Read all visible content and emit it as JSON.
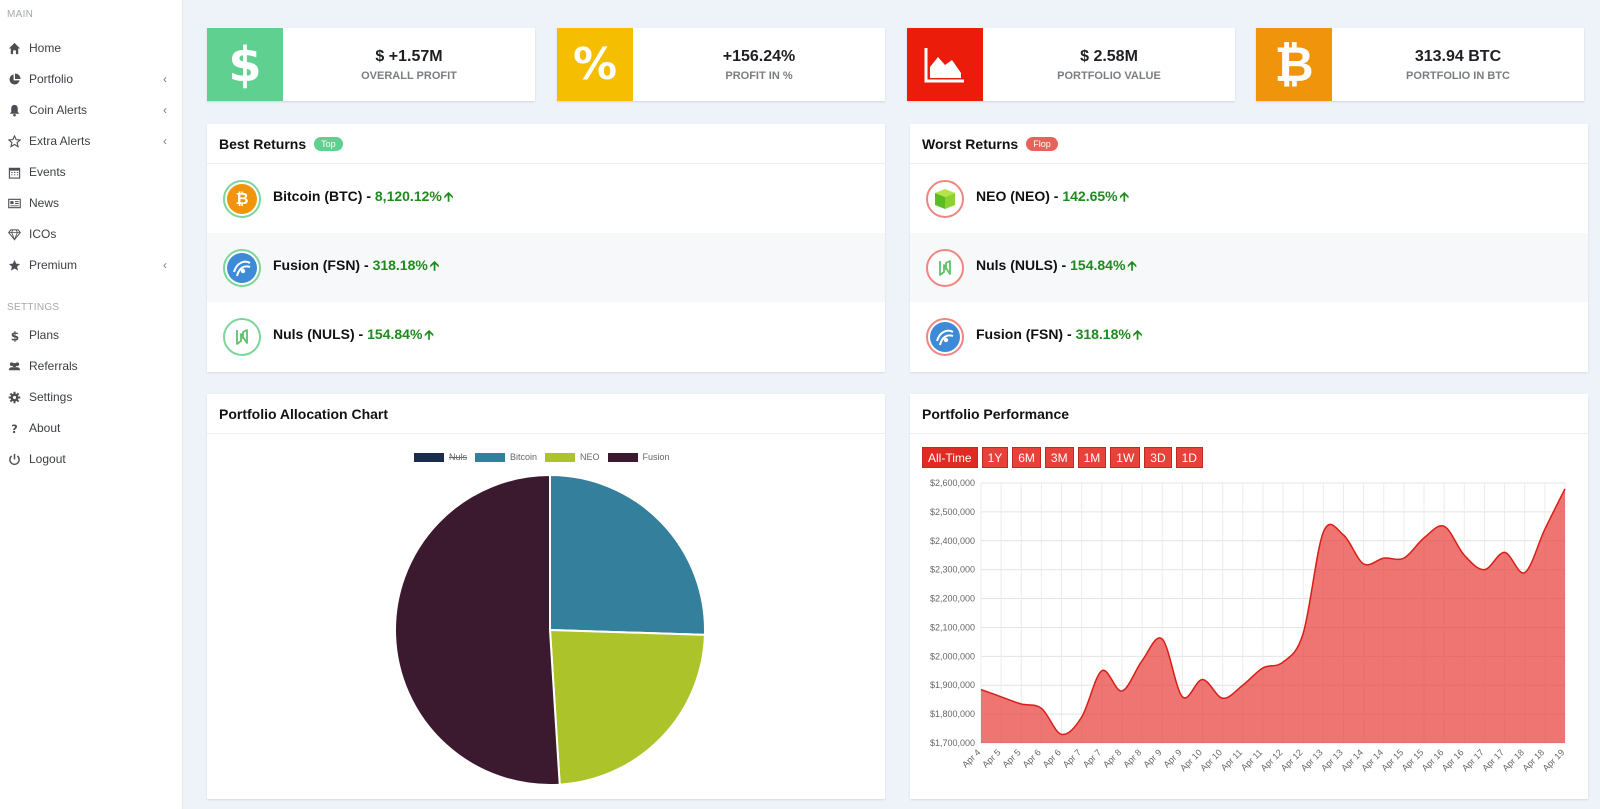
{
  "sidebar": {
    "sections": [
      {
        "title": "MAIN",
        "items": [
          {
            "label": "Home",
            "icon": "home-icon",
            "chevron": false
          },
          {
            "label": "Portfolio",
            "icon": "pie-chart-icon",
            "chevron": true
          },
          {
            "label": "Coin Alerts",
            "icon": "bell-icon",
            "chevron": true
          },
          {
            "label": "Extra Alerts",
            "icon": "star-outline-icon",
            "chevron": true
          },
          {
            "label": "Events",
            "icon": "calendar-icon",
            "chevron": false
          },
          {
            "label": "News",
            "icon": "newspaper-icon",
            "chevron": false
          },
          {
            "label": "ICOs",
            "icon": "diamond-icon",
            "chevron": false
          },
          {
            "label": "Premium",
            "icon": "star-icon",
            "chevron": true
          }
        ]
      },
      {
        "title": "SETTINGS",
        "items": [
          {
            "label": "Plans",
            "icon": "dollar-icon",
            "chevron": false
          },
          {
            "label": "Referrals",
            "icon": "users-icon",
            "chevron": false
          },
          {
            "label": "Settings",
            "icon": "gear-icon",
            "chevron": false
          },
          {
            "label": "About",
            "icon": "question-icon",
            "chevron": false
          },
          {
            "label": "Logout",
            "icon": "power-icon",
            "chevron": false
          }
        ]
      }
    ],
    "chevron_glyph": "‹"
  },
  "stats": [
    {
      "value": "$ +1.57M",
      "label": "OVERALL PROFIT",
      "icon": "dollar-icon",
      "color": "#5fd08f",
      "glyph": "$"
    },
    {
      "value": "+156.24%",
      "label": "PROFIT IN %",
      "icon": "percent-icon",
      "color": "#f5be00",
      "glyph": "%"
    },
    {
      "value": "$ 2.58M",
      "label": "PORTFOLIO VALUE",
      "icon": "area-chart-icon",
      "color": "#ec1c0b",
      "glyph": ""
    },
    {
      "value": "313.94 BTC",
      "label": "PORTFOLIO IN BTC",
      "icon": "bitcoin-icon",
      "color": "#f0950b",
      "glyph": "₿"
    }
  ],
  "best_returns": {
    "title": "Best Returns",
    "badge": "Top",
    "badge_color": "#5fd08f",
    "rows": [
      {
        "name": "Bitcoin (BTC)",
        "sep": " - ",
        "pct": "8,120.12%",
        "coin": "bitcoin"
      },
      {
        "name": "Fusion (FSN)",
        "sep": " - ",
        "pct": "318.18%",
        "coin": "fusion"
      },
      {
        "name": "Nuls (NULS)",
        "sep": " - ",
        "pct": "154.84%",
        "coin": "nuls"
      }
    ]
  },
  "worst_returns": {
    "title": "Worst Returns",
    "badge": "Flop",
    "badge_color": "#e8615b",
    "rows": [
      {
        "name": "NEO (NEO)",
        "sep": " - ",
        "pct": "142.65%",
        "coin": "neo"
      },
      {
        "name": "Nuls (NULS)",
        "sep": " - ",
        "pct": "154.84%",
        "coin": "nuls"
      },
      {
        "name": "Fusion (FSN)",
        "sep": " - ",
        "pct": "318.18%",
        "coin": "fusion"
      }
    ]
  },
  "allocation": {
    "title": "Portfolio Allocation Chart"
  },
  "performance": {
    "title": "Portfolio Performance",
    "ranges": [
      "All-Time",
      "1Y",
      "6M",
      "3M",
      "1M",
      "1W",
      "3D",
      "1D"
    ],
    "active_range": "All-Time"
  },
  "chart_data": [
    {
      "type": "pie",
      "title": "",
      "labels": [
        "Nuls",
        "Bitcoin",
        "NEO",
        "Fusion"
      ],
      "values": [
        0,
        25.5,
        23.5,
        51
      ],
      "colors": [
        "#1a2d4e",
        "#347f9b",
        "#adc32a",
        "#3b1a2f"
      ],
      "hidden": [
        "Nuls"
      ],
      "legend": "top"
    },
    {
      "type": "area",
      "title": "",
      "x": [
        "Apr 4",
        "Apr 5",
        "Apr 5",
        "Apr 6",
        "Apr 6",
        "Apr 7",
        "Apr 7",
        "Apr 8",
        "Apr 8",
        "Apr 9",
        "Apr 9",
        "Apr 10",
        "Apr 10",
        "Apr 11",
        "Apr 11",
        "Apr 12",
        "Apr 12",
        "Apr 13",
        "Apr 13",
        "Apr 14",
        "Apr 14",
        "Apr 15",
        "Apr 15",
        "Apr 16",
        "Apr 16",
        "Apr 17",
        "Apr 17",
        "Apr 18",
        "Apr 18",
        "Apr 19"
      ],
      "values": [
        1885000,
        1860000,
        1835000,
        1820000,
        1730000,
        1790000,
        1950000,
        1880000,
        1985000,
        2060000,
        1860000,
        1920000,
        1855000,
        1900000,
        1960000,
        1980000,
        2080000,
        2430000,
        2420000,
        2320000,
        2340000,
        2340000,
        2410000,
        2450000,
        2350000,
        2300000,
        2360000,
        2290000,
        2440000,
        2580000
      ],
      "ylim": [
        1700000,
        2600000
      ],
      "yticks": [
        "$1,700,000",
        "$1,800,000",
        "$1,900,000",
        "$2,000,000",
        "$2,100,000",
        "$2,200,000",
        "$2,300,000",
        "$2,400,000",
        "$2,500,000",
        "$2,600,000"
      ],
      "color": "#e83b36",
      "grid": true
    }
  ]
}
